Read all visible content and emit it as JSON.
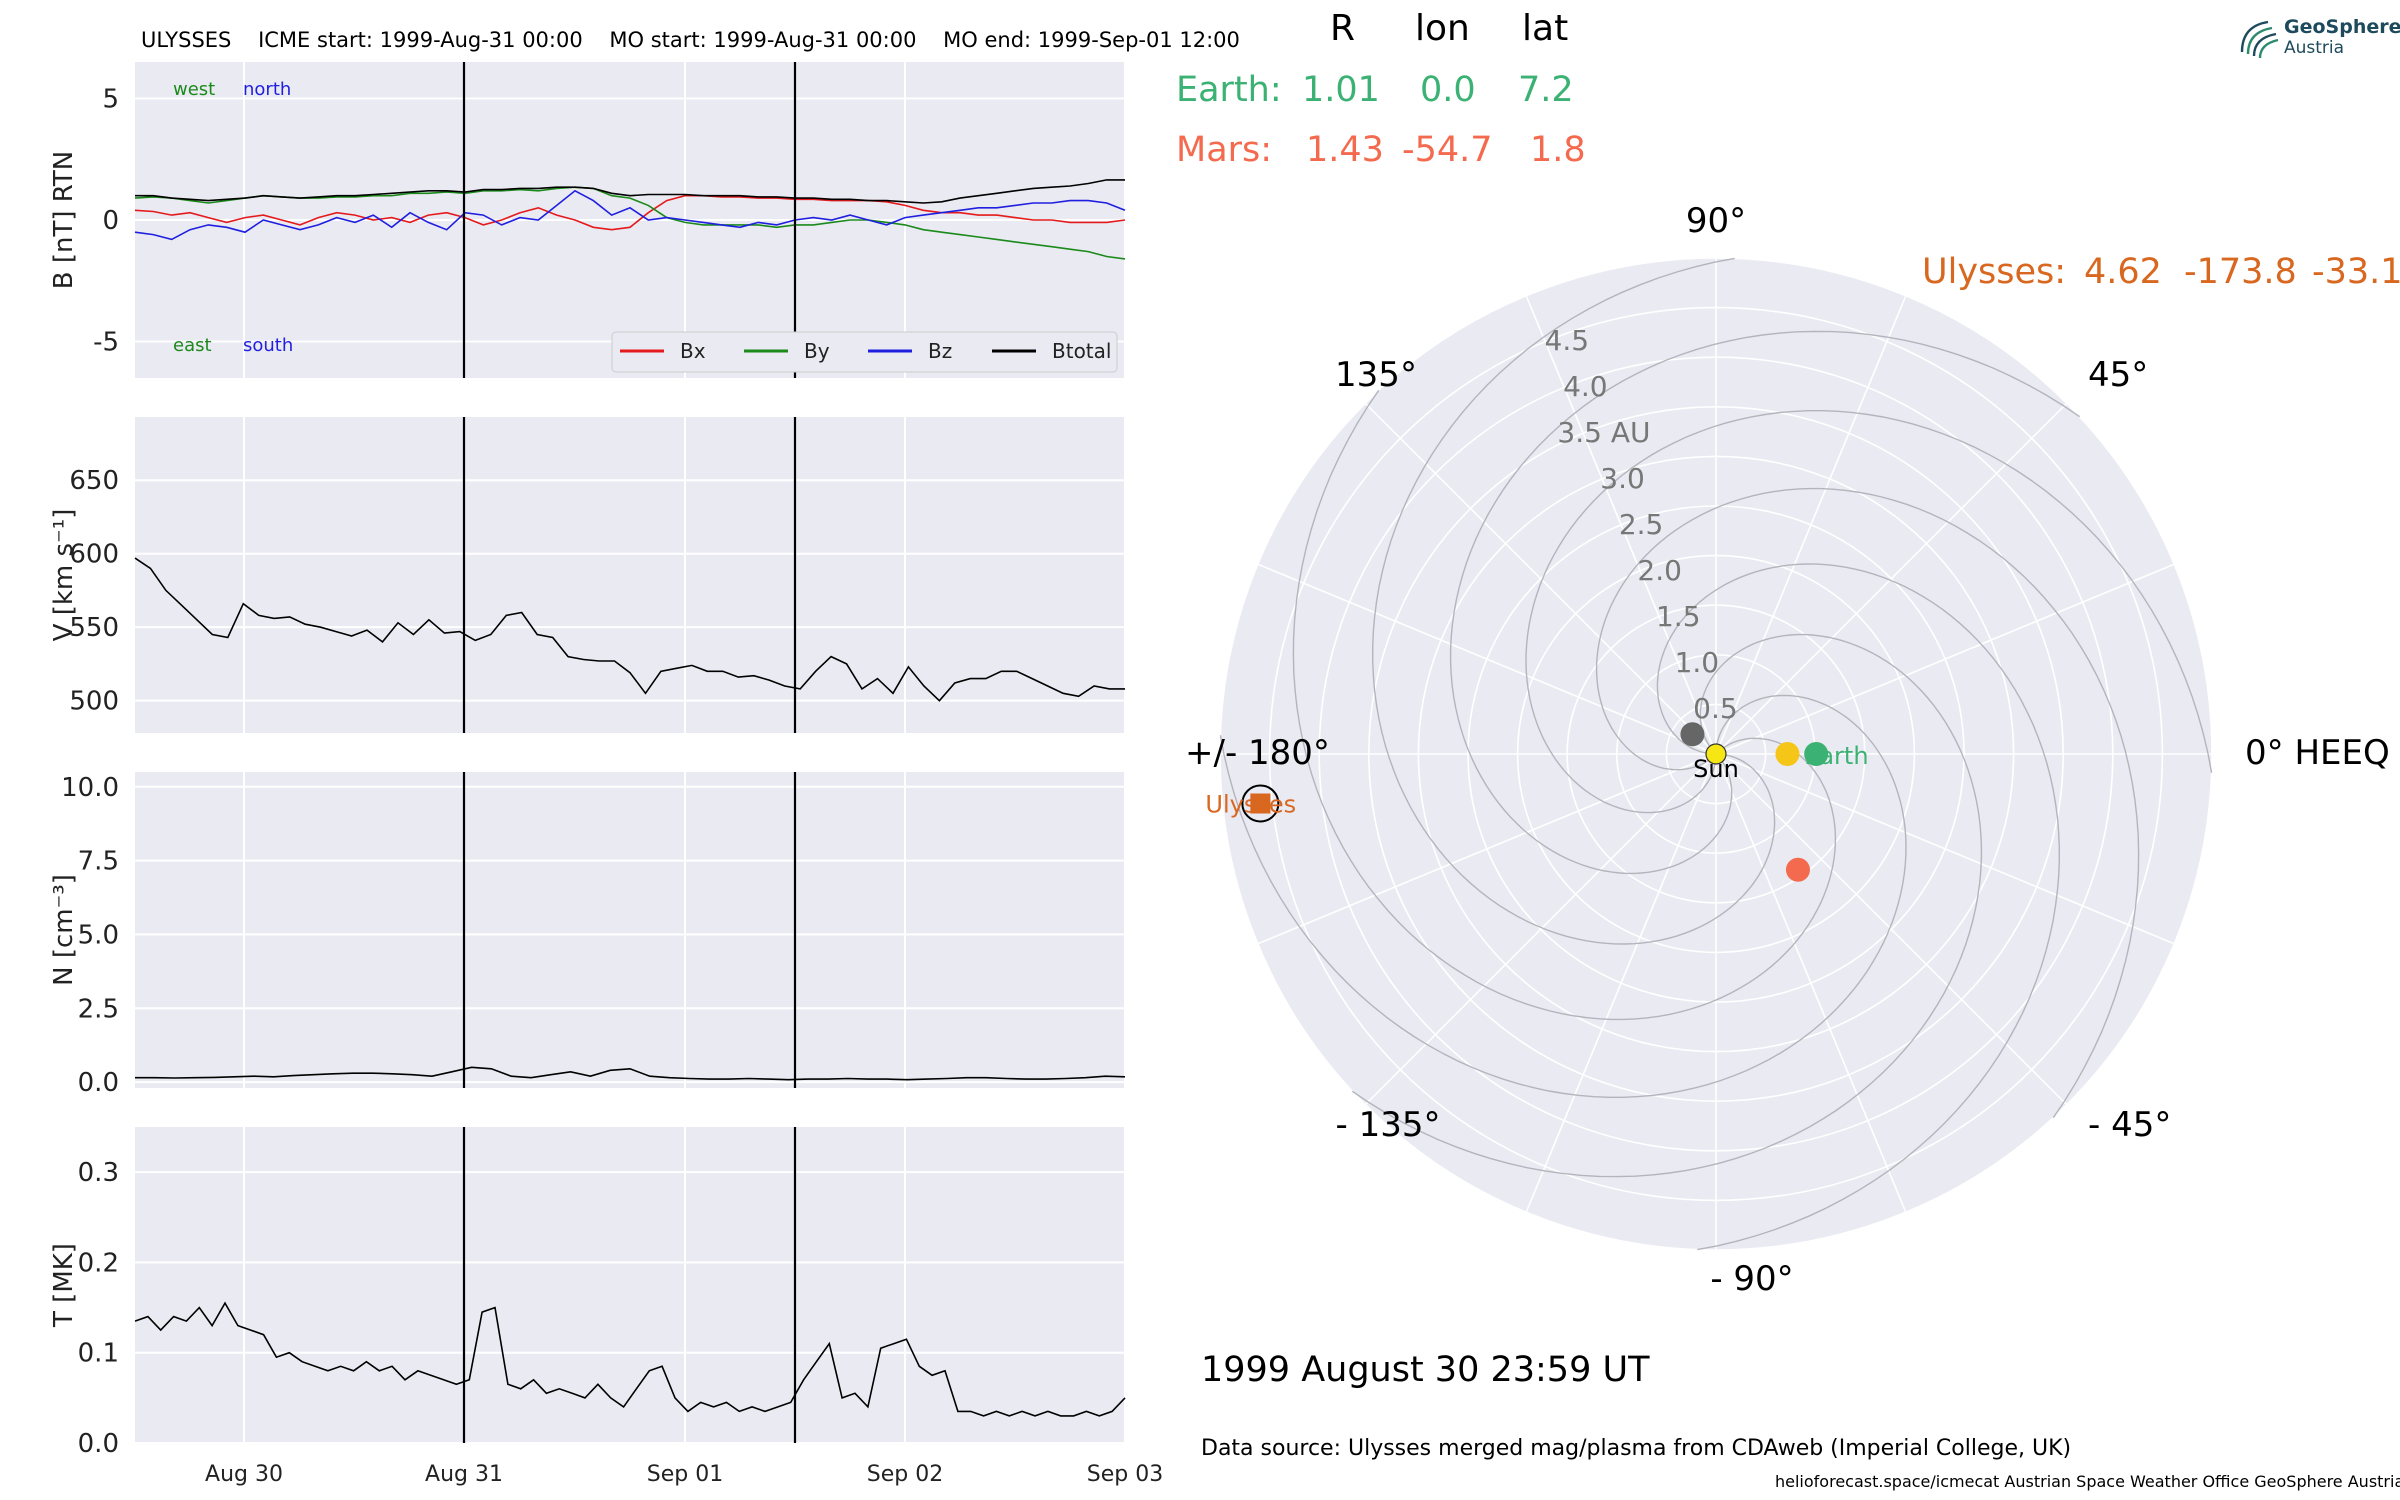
{
  "header": {
    "title_left": "ULYSSES",
    "icme_start": "ICME start: 1999-Aug-31 00:00",
    "mo_start": "MO start: 1999-Aug-31 00:00",
    "mo_end": "MO end: 1999-Sep-01 12:00"
  },
  "logo": {
    "line1": "GeoSphere",
    "line2": "Austria",
    "icon": "spiral-waves-icon"
  },
  "table": {
    "col_r": "R",
    "col_lon": "lon",
    "col_lat": "lat",
    "earth": {
      "label": "Earth:",
      "r": "1.01",
      "lon": "0.0",
      "lat": "7.2",
      "color": "#3bb273"
    },
    "mars": {
      "label": "Mars:",
      "r": "1.43",
      "lon": "-54.7",
      "lat": "1.8",
      "color": "#f46a4e"
    },
    "ulysses": {
      "label": "Ulysses:",
      "r": "4.62",
      "lon": "-173.8",
      "lat": "-33.1",
      "color": "#d8671f"
    }
  },
  "datetime": "1999 August 30  23:59 UT",
  "data_source": "Data source: Ulysses merged mag/plasma from CDAweb (Imperial College, UK)",
  "footer": "helioforecast.space/icmecat   Austrian Space Weather Office   GeoSphere Austria",
  "colors": {
    "panel_bg": "#eaeaf2",
    "grid": "#ffffff",
    "bx": "#e41a1c",
    "by": "#1b8a1b",
    "bz": "#1f1fe0",
    "btotal": "#000000"
  },
  "chart_data": [
    {
      "type": "line",
      "ylabel": "B [nT] RTN",
      "x_ticks": [
        "Aug 30",
        "Aug 31",
        "Sep 01",
        "Sep 02",
        "Sep 03"
      ],
      "x_range_days": [
        "1999-08-29 12:00",
        "1999-09-03 00:00"
      ],
      "ylim": [
        -6.5,
        6.5
      ],
      "y_ticks": [
        -5,
        0,
        5
      ],
      "vlines": [
        "1999-08-31 00:00",
        "1999-09-01 12:00"
      ],
      "annotations": {
        "west": "west",
        "north": "north",
        "east": "east",
        "south": "south"
      },
      "legend": {
        "placement": "lower-right",
        "items": [
          "Bx",
          "By",
          "Bz",
          "Btotal"
        ]
      },
      "series": [
        {
          "name": "Bx",
          "color": "#e41a1c",
          "values": [
            0.4,
            0.35,
            0.2,
            0.3,
            0.1,
            -0.1,
            0.1,
            0.2,
            0.0,
            -0.2,
            0.1,
            0.3,
            0.2,
            0.0,
            0.1,
            -0.1,
            0.2,
            0.3,
            0.1,
            -0.2,
            0.0,
            0.3,
            0.5,
            0.2,
            0.0,
            -0.3,
            -0.4,
            -0.3,
            0.3,
            0.8,
            1.0,
            1.0,
            0.95,
            0.95,
            0.9,
            0.9,
            0.85,
            0.85,
            0.8,
            0.8,
            0.8,
            0.75,
            0.6,
            0.4,
            0.3,
            0.3,
            0.2,
            0.2,
            0.1,
            0.0,
            0.0,
            -0.1,
            -0.1,
            -0.1,
            0.0
          ]
        },
        {
          "name": "By",
          "color": "#1b8a1b",
          "values": [
            0.9,
            0.95,
            0.9,
            0.8,
            0.7,
            0.8,
            0.9,
            1.0,
            0.95,
            0.9,
            0.9,
            0.95,
            0.95,
            1.0,
            1.0,
            1.1,
            1.1,
            1.15,
            1.1,
            1.2,
            1.2,
            1.25,
            1.2,
            1.3,
            1.35,
            1.3,
            1.0,
            0.9,
            0.6,
            0.1,
            -0.1,
            -0.2,
            -0.2,
            -0.2,
            -0.2,
            -0.3,
            -0.2,
            -0.2,
            -0.1,
            0.0,
            0.0,
            -0.1,
            -0.2,
            -0.4,
            -0.5,
            -0.6,
            -0.7,
            -0.8,
            -0.9,
            -1.0,
            -1.1,
            -1.2,
            -1.3,
            -1.5,
            -1.6
          ]
        },
        {
          "name": "Bz",
          "color": "#1f1fe0",
          "values": [
            -0.5,
            -0.6,
            -0.8,
            -0.4,
            -0.2,
            -0.3,
            -0.5,
            0.0,
            -0.2,
            -0.4,
            -0.2,
            0.1,
            -0.1,
            0.2,
            -0.3,
            0.3,
            -0.1,
            -0.4,
            0.3,
            0.2,
            -0.2,
            0.1,
            0.0,
            0.6,
            1.2,
            0.8,
            0.2,
            0.5,
            0.0,
            0.1,
            0.0,
            -0.1,
            -0.2,
            -0.3,
            -0.1,
            -0.2,
            0.0,
            0.1,
            0.0,
            0.2,
            0.0,
            -0.2,
            0.1,
            0.2,
            0.3,
            0.4,
            0.5,
            0.5,
            0.6,
            0.7,
            0.7,
            0.8,
            0.8,
            0.7,
            0.4
          ]
        },
        {
          "name": "Btotal",
          "color": "#000000",
          "values": [
            1.0,
            1.0,
            0.9,
            0.85,
            0.8,
            0.85,
            0.9,
            1.0,
            0.95,
            0.9,
            0.95,
            1.0,
            1.0,
            1.05,
            1.1,
            1.15,
            1.2,
            1.2,
            1.15,
            1.25,
            1.25,
            1.3,
            1.3,
            1.35,
            1.35,
            1.3,
            1.1,
            1.0,
            1.05,
            1.05,
            1.05,
            1.0,
            1.0,
            1.0,
            0.95,
            0.95,
            0.9,
            0.9,
            0.85,
            0.85,
            0.8,
            0.8,
            0.75,
            0.7,
            0.75,
            0.9,
            1.0,
            1.1,
            1.2,
            1.3,
            1.35,
            1.4,
            1.5,
            1.65,
            1.65
          ]
        }
      ]
    },
    {
      "type": "line",
      "ylabel": "V [km s⁻¹]",
      "ylim": [
        478,
        693
      ],
      "y_ticks": [
        500,
        550,
        600,
        650
      ],
      "series": [
        {
          "name": "",
          "color": "#000000",
          "values": [
            597,
            590,
            575,
            565,
            555,
            545,
            543,
            566,
            558,
            556,
            557,
            552,
            550,
            547,
            544,
            548,
            540,
            553,
            545,
            555,
            546,
            547,
            541,
            545,
            558,
            560,
            545,
            543,
            530,
            528,
            527,
            527,
            519,
            505,
            520,
            522,
            524,
            520,
            520,
            516,
            517,
            514,
            510,
            508,
            520,
            530,
            525,
            508,
            515,
            505,
            523,
            510,
            500,
            512,
            515,
            515,
            520,
            520,
            515,
            510,
            505,
            503,
            510,
            508,
            508
          ]
        }
      ]
    },
    {
      "type": "line",
      "ylabel": "N [cm⁻³]",
      "ylim": [
        -0.2,
        10.5
      ],
      "y_ticks": [
        0.0,
        2.5,
        5.0,
        7.5,
        10.0
      ],
      "series": [
        {
          "name": "",
          "color": "#000000",
          "values": [
            0.15,
            0.15,
            0.14,
            0.15,
            0.16,
            0.18,
            0.2,
            0.18,
            0.22,
            0.25,
            0.28,
            0.3,
            0.3,
            0.28,
            0.25,
            0.2,
            0.35,
            0.5,
            0.45,
            0.2,
            0.15,
            0.25,
            0.35,
            0.2,
            0.4,
            0.45,
            0.2,
            0.15,
            0.12,
            0.1,
            0.1,
            0.12,
            0.1,
            0.08,
            0.1,
            0.1,
            0.12,
            0.1,
            0.1,
            0.08,
            0.1,
            0.12,
            0.15,
            0.15,
            0.12,
            0.1,
            0.1,
            0.12,
            0.15,
            0.2,
            0.18
          ]
        }
      ]
    },
    {
      "type": "line",
      "ylabel": "T [MK]",
      "ylim": [
        0.0,
        0.35
      ],
      "y_ticks": [
        0.0,
        0.1,
        0.2,
        0.3
      ],
      "series": [
        {
          "name": "",
          "color": "#000000",
          "values": [
            0.135,
            0.14,
            0.125,
            0.14,
            0.135,
            0.15,
            0.13,
            0.155,
            0.13,
            0.125,
            0.12,
            0.095,
            0.1,
            0.09,
            0.085,
            0.08,
            0.085,
            0.08,
            0.09,
            0.08,
            0.085,
            0.07,
            0.08,
            0.075,
            0.07,
            0.065,
            0.07,
            0.145,
            0.15,
            0.065,
            0.06,
            0.07,
            0.055,
            0.06,
            0.055,
            0.05,
            0.065,
            0.05,
            0.04,
            0.06,
            0.08,
            0.085,
            0.05,
            0.035,
            0.045,
            0.04,
            0.045,
            0.035,
            0.04,
            0.035,
            0.04,
            0.045,
            0.07,
            0.09,
            0.11,
            0.05,
            0.055,
            0.04,
            0.105,
            0.11,
            0.115,
            0.085,
            0.075,
            0.08,
            0.035,
            0.035,
            0.03,
            0.035,
            0.03,
            0.035,
            0.03,
            0.035,
            0.03,
            0.03,
            0.035,
            0.03,
            0.035,
            0.05
          ]
        }
      ]
    },
    {
      "type": "scatter",
      "subtype": "polar",
      "angle_labels": {
        "deg0": "0° HEEQ",
        "deg45": "45°",
        "deg90": "90°",
        "deg135": "135°",
        "deg180": "+/- 180°",
        "degm135": "- 135°",
        "degm90": "- 90°",
        "degm45": "- 45°"
      },
      "radial_ticks": [
        "0.5",
        "1.0",
        "1.5",
        "2.0",
        "2.5",
        "3.0",
        "3.5 AU",
        "4.0",
        "4.5"
      ],
      "r_max": 5.0,
      "points": [
        {
          "name": "Sun",
          "r": 0.0,
          "lon": 0.0,
          "color": "#f5e614",
          "label": "Sun"
        },
        {
          "name": "Earth",
          "r": 1.01,
          "lon": 0.0,
          "color": "#3bb273",
          "label": "Earth"
        },
        {
          "name": "Mars",
          "r": 1.43,
          "lon": -54.7,
          "color": "#f46a4e",
          "label": ""
        },
        {
          "name": "Ulysses",
          "r": 4.62,
          "lon": -173.8,
          "color": "#d8671f",
          "label": "Ulysses"
        },
        {
          "name": "Venus",
          "r": 0.72,
          "lon": 0.0,
          "color": "#f5c518",
          "label": ""
        },
        {
          "name": "Mercury",
          "r": 0.31,
          "lon": 140.0,
          "color": "#666666",
          "label": ""
        }
      ]
    }
  ]
}
